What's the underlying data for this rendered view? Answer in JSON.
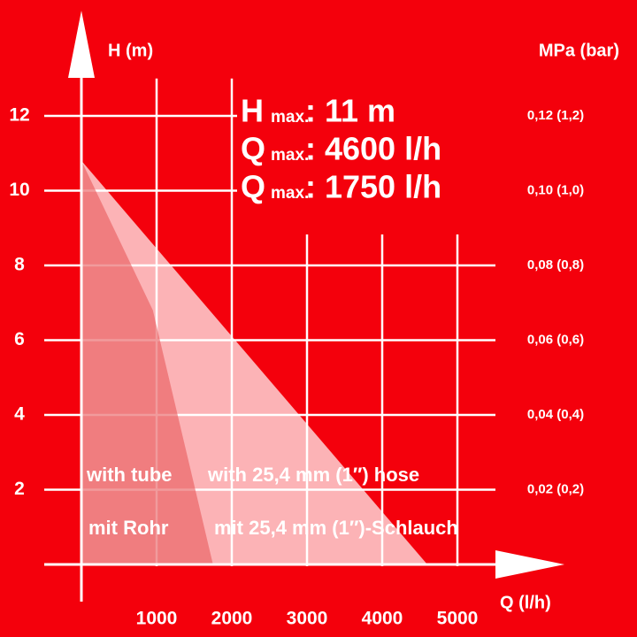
{
  "chart_data": {
    "type": "area",
    "y_label": "H (m)",
    "x_label": "Q (l/h)",
    "y2_label": "MPa (bar)",
    "xlim": [
      0,
      5500
    ],
    "ylim": [
      0,
      13
    ],
    "y2lim": [
      0,
      0.13
    ],
    "xticks": [
      1000,
      2000,
      3000,
      4000,
      5000
    ],
    "yticks": [
      2,
      4,
      6,
      8,
      10,
      12
    ],
    "y2ticks": [
      {
        "value": 0.02,
        "label": "0,02 (0,2)"
      },
      {
        "value": 0.04,
        "label": "0,04 (0,4)"
      },
      {
        "value": 0.06,
        "label": "0,06 (0,6)"
      },
      {
        "value": 0.08,
        "label": "0,08 (0,8)"
      },
      {
        "value": 0.1,
        "label": "0,10 (1,0)"
      },
      {
        "value": 0.12,
        "label": "0,12 (1,2)"
      }
    ],
    "grid": true,
    "series": [
      {
        "name": "with 25,4 mm (1″) hose",
        "name_de": "mit 25,4 mm (1″)-Schlauch",
        "color": "#ffffff",
        "opacity": 0.7,
        "x": [
          0,
          4600
        ],
        "values": [
          10.8,
          0
        ]
      },
      {
        "name": "with tube",
        "name_de": "mit Rohr",
        "color": "#e8585a",
        "opacity": 0.6,
        "x": [
          0,
          950,
          1750
        ],
        "values": [
          10.8,
          6.8,
          0
        ]
      }
    ],
    "annotations": [
      {
        "symbol": "H",
        "subscript": "max.",
        "text": ": 11 m"
      },
      {
        "symbol": "Q",
        "subscript": "max.",
        "text": ": 4600 l/h"
      },
      {
        "symbol": "Q",
        "subscript": "max.",
        "text": ": 1750 l/h"
      }
    ]
  }
}
